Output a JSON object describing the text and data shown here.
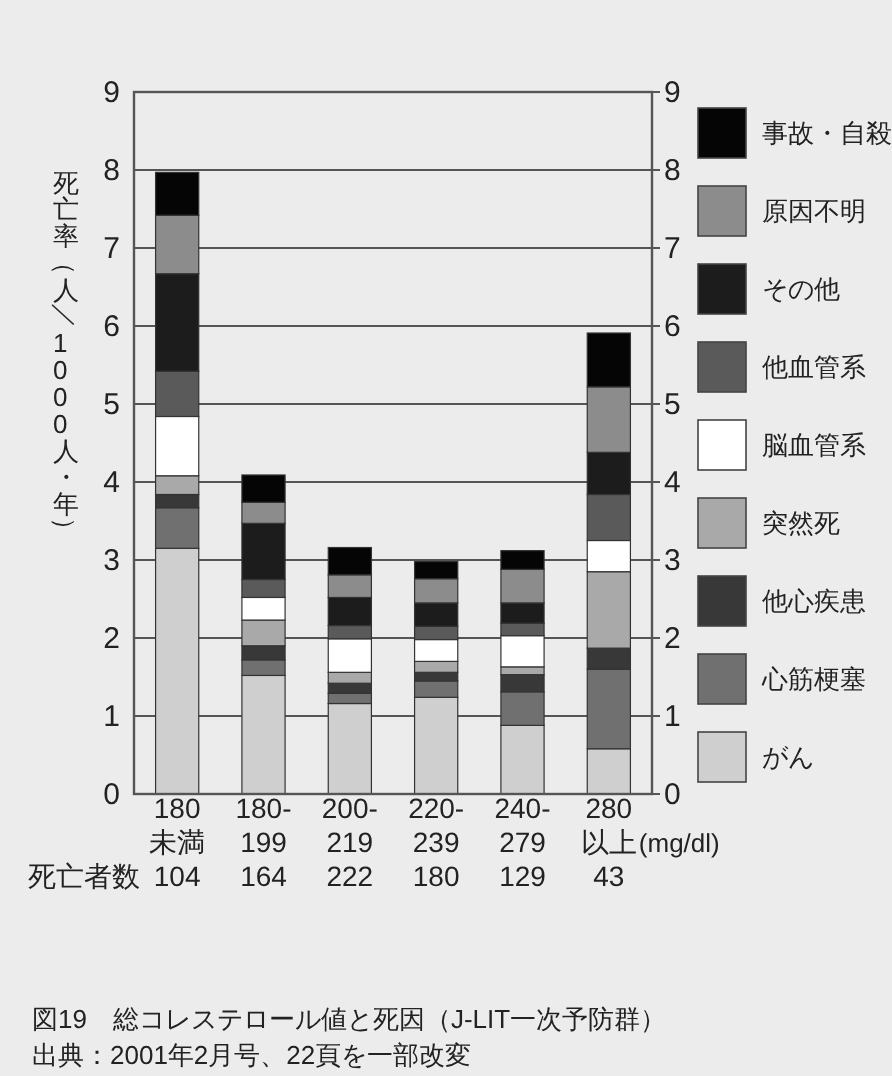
{
  "chart_data": {
    "type": "bar",
    "stacked": true,
    "title": "図19　総コレステロール値と死因（J-LIT一次予防群）",
    "ylabel": "死亡率（人／1000人・年）",
    "xlabel": "(mg/dl)",
    "annotations": [
      "死亡者数",
      "出典：2001年2月号、22頁を一部改変"
    ],
    "categories": [
      "180\n未満\n104",
      "180-\n199\n164",
      "200-\n219\n222",
      "220-\n239\n180",
      "240-\n279\n129",
      "280\n以上\n43"
    ],
    "series": [
      {
        "name": "がん",
        "color": "#cfcfcf",
        "values": [
          3.15,
          1.52,
          1.16,
          1.24,
          0.88,
          0.58
        ]
      },
      {
        "name": "心筋梗塞",
        "color": "#707070",
        "values": [
          0.52,
          0.2,
          0.13,
          0.21,
          0.43,
          1.02
        ]
      },
      {
        "name": "他心疾患",
        "color": "#383838",
        "values": [
          0.17,
          0.18,
          0.13,
          0.11,
          0.22,
          0.27
        ]
      },
      {
        "name": "突然死",
        "color": "#a9a9a9",
        "values": [
          0.24,
          0.33,
          0.14,
          0.14,
          0.1,
          0.98
        ]
      },
      {
        "name": "脳血管系",
        "color": "#ffffff",
        "values": [
          0.76,
          0.29,
          0.43,
          0.28,
          0.4,
          0.4
        ]
      },
      {
        "name": "他血管系",
        "color": "#5a5a5a",
        "values": [
          0.58,
          0.23,
          0.17,
          0.17,
          0.16,
          0.59
        ]
      },
      {
        "name": "その他",
        "color": "#1c1c1c",
        "values": [
          1.25,
          0.72,
          0.36,
          0.3,
          0.26,
          0.54
        ]
      },
      {
        "name": "原因不明",
        "color": "#8c8c8c",
        "values": [
          0.75,
          0.27,
          0.29,
          0.31,
          0.43,
          0.84
        ]
      },
      {
        "name": "事故・自殺",
        "color": "#050505",
        "values": [
          0.55,
          0.35,
          0.35,
          0.22,
          0.24,
          0.69
        ]
      }
    ],
    "ylim": [
      0,
      9
    ],
    "yticks": [
      0,
      1,
      2,
      3,
      4,
      5,
      6,
      7,
      8,
      9
    ],
    "y2lim": [
      0,
      9
    ],
    "y2ticks": [
      0,
      1,
      2,
      3,
      4,
      5,
      6,
      7,
      8,
      9
    ],
    "grid": "y",
    "legend": "right"
  }
}
